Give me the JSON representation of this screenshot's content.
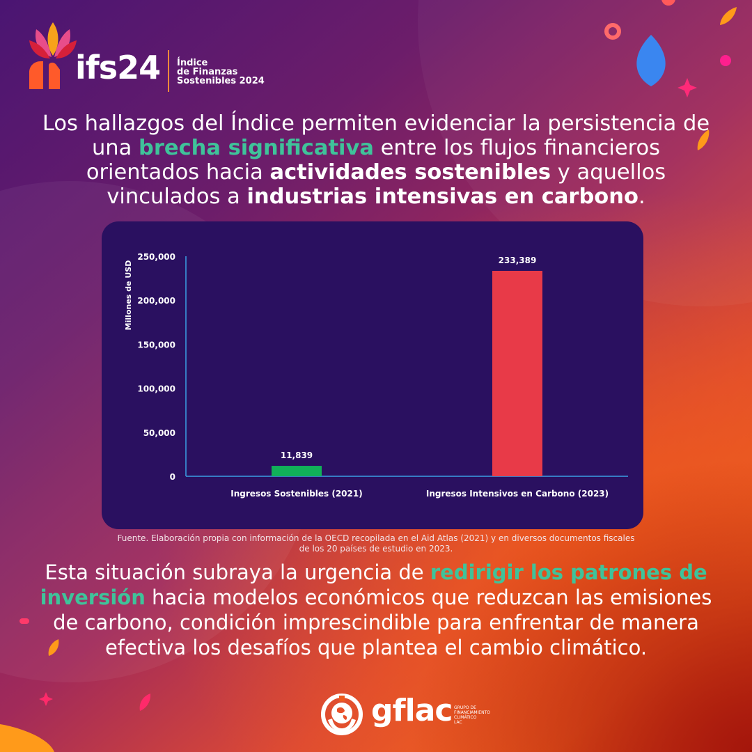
{
  "brand": {
    "logo_text": "ifs24",
    "logo_subtitle": "Índice\nde Finanzas\nSostenibles 2024",
    "footer_logo_text": "gflac",
    "footer_logo_subtitle": "GRUPO DE\nFINANCIAMIENTO\nCLIMÁTICO\nLAC"
  },
  "headline": {
    "p1": "Los hallazgos del Índice permiten evidenciar la persistencia de una ",
    "h1": "brecha significativa",
    "p2": " entre los flujos financieros orientados hacia ",
    "h2": "actividades sostenibles",
    "p3": " y aquellos vinculados a ",
    "h3": "industrias intensivas en carbono",
    "p4": "."
  },
  "chart_data": {
    "type": "bar",
    "ylabel": "Millones de USD",
    "xlabel": "",
    "ylim": [
      0,
      250000
    ],
    "yticks": [
      0,
      50000,
      100000,
      150000,
      200000,
      250000
    ],
    "ytick_labels": [
      "0",
      "50,000",
      "100,000",
      "150,000",
      "200,000",
      "250,000"
    ],
    "categories": [
      "Ingresos Sostenibles (2021)",
      "Ingresos Intensivos en Carbono (2023)"
    ],
    "values": [
      11839,
      233389
    ],
    "data_labels": [
      "11,839",
      "233,389"
    ],
    "colors": [
      "#11b059",
      "#e83a48"
    ],
    "grid": false
  },
  "source": "Fuente. Elaboración propia con información de la OECD recopilada en el Aid Atlas (2021) y  en diversos documentos fiscales de los 20 países de estudio en 2023.",
  "conclusion": {
    "p1": "Esta situación subraya la urgencia de ",
    "h1": "redirigir los patrones de inversión",
    "p2": " hacia modelos económicos que reduzcan las emisiones de carbono, condición imprescindible para enfrentar de manera efectiva los desafíos que plantea el cambio climático."
  },
  "colors": {
    "accent_green": "#3fc39a",
    "panel": "#2a1060",
    "axis": "#3aa0e6"
  }
}
